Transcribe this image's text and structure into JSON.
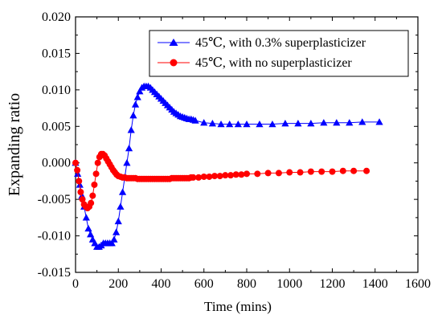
{
  "chart_data": {
    "type": "line",
    "xlabel": "Time (mins)",
    "ylabel": "Expanding ratio",
    "xlim": [
      0,
      1600
    ],
    "ylim": [
      -0.015,
      0.02
    ],
    "xticks": [
      0,
      200,
      400,
      600,
      800,
      1000,
      1200,
      1400,
      1600
    ],
    "yticks": [
      -0.015,
      -0.01,
      -0.005,
      0.0,
      0.005,
      0.01,
      0.015,
      0.02
    ],
    "xtick_labels": [
      "0",
      "200",
      "400",
      "600",
      "800",
      "1000",
      "1200",
      "1400",
      "1600"
    ],
    "ytick_labels": [
      "-0.015",
      "-0.010",
      "-0.005",
      "0.000",
      "0.005",
      "0.010",
      "0.015",
      "0.020"
    ],
    "legend_position": "top-right",
    "grid": false,
    "series": [
      {
        "name": "45℃, with 0.3% superplasticizer",
        "color": "#0000ff",
        "marker": "triangle",
        "x": [
          0,
          10,
          20,
          30,
          40,
          50,
          60,
          70,
          80,
          90,
          100,
          110,
          120,
          130,
          140,
          150,
          160,
          170,
          180,
          190,
          200,
          210,
          220,
          230,
          240,
          250,
          260,
          270,
          280,
          290,
          300,
          310,
          320,
          330,
          340,
          350,
          360,
          370,
          380,
          390,
          400,
          410,
          420,
          430,
          440,
          450,
          460,
          470,
          480,
          490,
          500,
          510,
          520,
          530,
          540,
          550,
          560,
          600,
          640,
          680,
          720,
          760,
          800,
          860,
          920,
          980,
          1040,
          1100,
          1160,
          1220,
          1280,
          1340,
          1420
        ],
        "y": [
          0.0,
          -0.0015,
          -0.003,
          -0.0045,
          -0.006,
          -0.0075,
          -0.009,
          -0.0098,
          -0.0105,
          -0.011,
          -0.0115,
          -0.0115,
          -0.0113,
          -0.011,
          -0.011,
          -0.011,
          -0.011,
          -0.011,
          -0.0105,
          -0.0095,
          -0.008,
          -0.006,
          -0.004,
          -0.002,
          0.0,
          0.002,
          0.0045,
          0.0065,
          0.008,
          0.009,
          0.0098,
          0.0103,
          0.0105,
          0.0105,
          0.0105,
          0.0103,
          0.01,
          0.0097,
          0.0094,
          0.0091,
          0.0088,
          0.0085,
          0.0082,
          0.0079,
          0.0076,
          0.0073,
          0.007,
          0.0068,
          0.0066,
          0.0064,
          0.0063,
          0.0062,
          0.0061,
          0.006,
          0.006,
          0.0059,
          0.0058,
          0.0055,
          0.0054,
          0.0053,
          0.0053,
          0.0053,
          0.0053,
          0.0053,
          0.0053,
          0.0054,
          0.0054,
          0.0054,
          0.0055,
          0.0055,
          0.0055,
          0.0056,
          0.0056
        ]
      },
      {
        "name": "45℃, with no superplasticizer",
        "color": "#ff0000",
        "marker": "circle",
        "x": [
          0,
          8,
          16,
          24,
          32,
          40,
          48,
          56,
          64,
          72,
          80,
          88,
          96,
          104,
          112,
          120,
          128,
          136,
          144,
          152,
          160,
          168,
          176,
          184,
          192,
          200,
          210,
          220,
          230,
          240,
          250,
          260,
          270,
          280,
          290,
          300,
          310,
          320,
          330,
          340,
          350,
          360,
          370,
          380,
          390,
          400,
          410,
          420,
          430,
          440,
          450,
          460,
          470,
          480,
          490,
          500,
          510,
          520,
          530,
          540,
          550,
          575,
          600,
          625,
          650,
          675,
          700,
          725,
          750,
          775,
          800,
          850,
          900,
          950,
          1000,
          1050,
          1100,
          1150,
          1200,
          1250,
          1300,
          1360
        ],
        "y": [
          0.0,
          -0.001,
          -0.0025,
          -0.004,
          -0.005,
          -0.0057,
          -0.006,
          -0.0062,
          -0.006,
          -0.0055,
          -0.0045,
          -0.003,
          -0.0015,
          0.0,
          0.0008,
          0.0012,
          0.0012,
          0.001,
          0.0006,
          0.0002,
          -0.0002,
          -0.0006,
          -0.001,
          -0.0013,
          -0.0016,
          -0.0018,
          -0.0019,
          -0.002,
          -0.002,
          -0.0021,
          -0.0021,
          -0.0021,
          -0.0021,
          -0.0021,
          -0.0022,
          -0.0022,
          -0.0022,
          -0.0022,
          -0.0022,
          -0.0022,
          -0.0022,
          -0.0022,
          -0.0022,
          -0.0022,
          -0.0022,
          -0.0022,
          -0.0022,
          -0.0022,
          -0.0022,
          -0.0022,
          -0.0021,
          -0.0021,
          -0.0021,
          -0.0021,
          -0.0021,
          -0.0021,
          -0.0021,
          -0.0021,
          -0.0021,
          -0.002,
          -0.002,
          -0.002,
          -0.0019,
          -0.0019,
          -0.0018,
          -0.0018,
          -0.0017,
          -0.0017,
          -0.0016,
          -0.0016,
          -0.0015,
          -0.0015,
          -0.0014,
          -0.0014,
          -0.0013,
          -0.0013,
          -0.0012,
          -0.0012,
          -0.0012,
          -0.0011,
          -0.0011,
          -0.0011
        ]
      }
    ]
  }
}
